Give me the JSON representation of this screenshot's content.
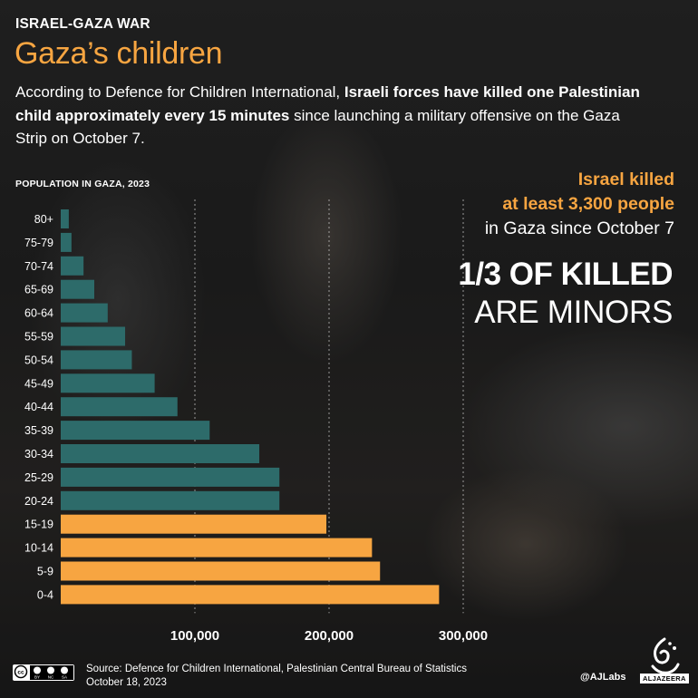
{
  "header": {
    "kicker": "ISRAEL-GAZA WAR",
    "title": "Gaza’s children",
    "intro_part1": "According to Defence for Children International, ",
    "intro_bold": "Israeli forces have killed one Palestinian child approximately every 15 minutes",
    "intro_part2": " since launching a military offensive on the Gaza Strip on October 7."
  },
  "stats": {
    "line1": "Israel killed",
    "line2": "at least 3,300 people",
    "line3": "in Gaza since October 7",
    "headline_bold": "1/3 OF KILLED",
    "headline_regular": "ARE MINORS"
  },
  "chart_data": {
    "type": "bar",
    "orientation": "horizontal",
    "title": "POPULATION IN GAZA, 2023",
    "categories": [
      "80+",
      "75-79",
      "70-74",
      "65-69",
      "60-64",
      "55-59",
      "50-54",
      "45-49",
      "40-44",
      "35-39",
      "30-34",
      "25-29",
      "20-24",
      "15-19",
      "10-14",
      "5-9",
      "0-4"
    ],
    "values": [
      6000,
      8000,
      17000,
      25000,
      35000,
      48000,
      53000,
      70000,
      87000,
      111000,
      148000,
      163000,
      163000,
      198000,
      232000,
      238000,
      282000
    ],
    "minor_categories": [
      "15-19",
      "10-14",
      "5-9",
      "0-4"
    ],
    "xticks": [
      100000,
      200000,
      300000
    ],
    "xtick_labels": [
      "100,000",
      "200,000",
      "300,000"
    ],
    "xlim": [
      0,
      300000
    ],
    "grid": true,
    "colors": {
      "adult": "#2d6b6a",
      "minor": "#f7a541"
    }
  },
  "footer": {
    "source_line1": "Source:  Defence for Children International, Palestinian Central Bureau of Statistics",
    "source_line2": "October 18, 2023",
    "handle": "@AJLabs",
    "wordmark": "ALJAZEERA",
    "cc_labels": [
      "BY",
      "NC",
      "SA"
    ]
  }
}
